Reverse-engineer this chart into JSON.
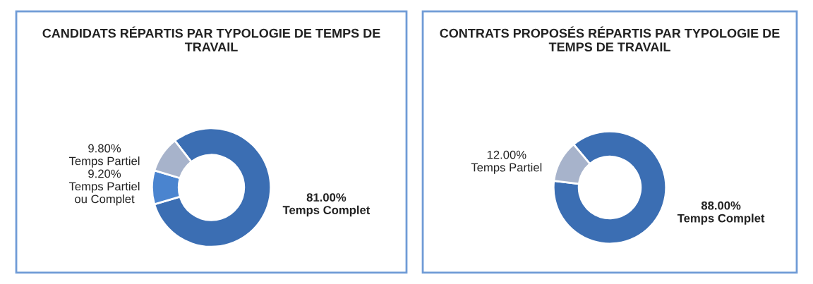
{
  "chart_data": [
    {
      "type": "donut",
      "title": "CANDIDATS RÉPARTIS PAR TYPOLOGIE DE TEMPS DE TRAVAIL",
      "categories": [
        "Temps Complet",
        "Temps Partiel ou Complet",
        "Temps Partiel"
      ],
      "values": [
        81,
        9.2,
        9.8
      ],
      "value_labels": [
        "81.00%",
        "9.20%",
        "9.80%"
      ],
      "colors": [
        "#3b6eb3",
        "#4a84cf",
        "#a7b3cb"
      ]
    },
    {
      "type": "donut",
      "title": "CONTRATS PROPOSÉS RÉPARTIS PAR TYPOLOGIE DE TEMPS DE TRAVAIL",
      "categories": [
        "Temps Complet",
        "Temps Partiel"
      ],
      "values": [
        88,
        12
      ],
      "value_labels": [
        "88.00%",
        "12.00%"
      ],
      "colors": [
        "#3b6eb3",
        "#a7b3cb"
      ]
    }
  ]
}
